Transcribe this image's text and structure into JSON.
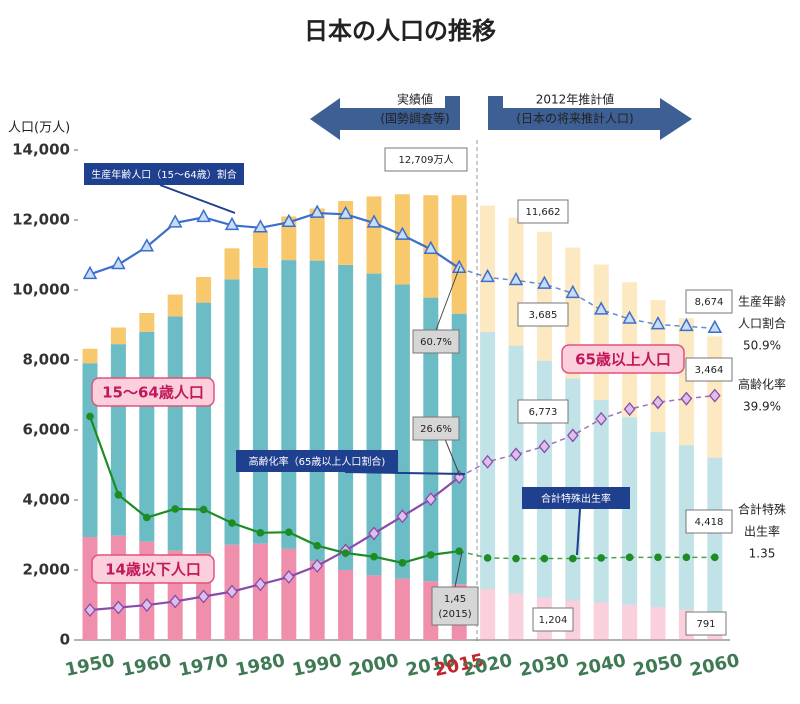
{
  "chart_data": {
    "type": "bar",
    "stacked": true,
    "title": "日本の人口の推移",
    "y_label": "人口(万人)",
    "categories": [
      "1950",
      null,
      "1960",
      null,
      "1970",
      null,
      "1980",
      null,
      "1990",
      null,
      "2000",
      null,
      "2010",
      "2015",
      "2020",
      null,
      "2030",
      null,
      "2040",
      null,
      "2050",
      null,
      "2060"
    ],
    "highlight_index": 13,
    "projection_start_index": 14,
    "ylim": [
      0,
      14000
    ],
    "yticks": [
      0,
      {
        "value": 2000,
        "label": "2,000"
      },
      {
        "value": 4000,
        "label": "4,000"
      },
      {
        "value": 6000,
        "label": "6,000"
      },
      {
        "value": 8000,
        "label": "8,000"
      },
      {
        "value": 10000,
        "label": "10,000"
      },
      {
        "value": 12000,
        "label": "12,000"
      },
      {
        "value": 14000,
        "label": "14,000"
      }
    ],
    "y2lim": [
      0,
      80
    ],
    "y3lim": [
      0,
      8
    ],
    "series": [
      {
        "name": "14歳以下人口",
        "color": "#f08fab",
        "values": [
          2943,
          2980,
          2807,
          2553,
          2482,
          2722,
          2751,
          2603,
          2249,
          2001,
          1847,
          1752,
          1680,
          1595,
          1457,
          1324,
          1204,
          1129,
          1073,
          1012,
          939,
          861,
          791
        ]
      },
      {
        "name": "15～64歳人口",
        "color": "#6cbcc6",
        "values": [
          4966,
          5473,
          6000,
          6693,
          7157,
          7581,
          7883,
          8251,
          8590,
          8716,
          8622,
          8409,
          8103,
          7728,
          7341,
          7085,
          6773,
          6343,
          5787,
          5353,
          5001,
          4706,
          4418
        ]
      },
      {
        "name": "65歳以上人口",
        "color": "#f8c96c",
        "values": [
          411,
          475,
          535,
          624,
          733,
          887,
          1065,
          1247,
          1489,
          1826,
          2204,
          2576,
          2925,
          3387,
          3612,
          3657,
          3685,
          3741,
          3868,
          3856,
          3768,
          3626,
          3464
        ]
      }
    ],
    "lines": [
      {
        "name": "生産年齢人口（15～64歳）割合",
        "axis": "y2",
        "marker": "triangle",
        "color": "#3b6fcc",
        "values": [
          59.7,
          61.3,
          64.2,
          68.1,
          69.0,
          67.7,
          67.3,
          68.2,
          69.7,
          69.5,
          68.1,
          66.1,
          63.8,
          60.7,
          59.2,
          58.7,
          58.1,
          56.6,
          53.9,
          52.4,
          51.5,
          51.2,
          50.9
        ]
      },
      {
        "name": "高齢化率（65歳以上人口割合)",
        "axis": "y2",
        "marker": "diamond",
        "color": "#8b4bab",
        "values": [
          4.9,
          5.3,
          5.7,
          6.3,
          7.1,
          7.9,
          9.1,
          10.3,
          12.1,
          14.6,
          17.4,
          20.2,
          23.0,
          26.6,
          29.1,
          30.3,
          31.6,
          33.4,
          36.1,
          37.7,
          38.8,
          39.4,
          39.9
        ]
      },
      {
        "name": "合計特殊出生率",
        "axis": "y3",
        "marker": "circle",
        "color": "#1e8c24",
        "values": [
          3.65,
          2.37,
          2.0,
          2.14,
          2.13,
          1.91,
          1.75,
          1.76,
          1.54,
          1.42,
          1.36,
          1.26,
          1.39,
          1.45,
          1.34,
          1.33,
          1.33,
          1.33,
          1.34,
          1.35,
          1.35,
          1.35,
          1.35
        ]
      }
    ],
    "periods": {
      "actual": [
        "実績値",
        "(国勢調査等)"
      ],
      "projection": [
        "2012年推計値",
        "(日本の将来推計人口)"
      ]
    },
    "annotations": [
      {
        "lines": [
          "12,709万人"
        ],
        "style": "white"
      },
      {
        "lines": [
          "60.7%"
        ],
        "style": "gray"
      },
      {
        "lines": [
          "26.6%"
        ],
        "style": "gray"
      },
      {
        "lines": [
          "1,45",
          "(2015)"
        ],
        "style": "gray"
      },
      {
        "lines": [
          "11,662"
        ],
        "style": "white"
      },
      {
        "lines": [
          "3,685"
        ],
        "style": "white"
      },
      {
        "lines": [
          "6,773"
        ],
        "style": "white"
      },
      {
        "lines": [
          "1,204"
        ],
        "style": "white"
      },
      {
        "lines": [
          "8,674"
        ],
        "style": "white"
      },
      {
        "lines": [
          "3,464"
        ],
        "style": "white"
      },
      {
        "lines": [
          "4,418"
        ],
        "style": "white"
      },
      {
        "lines": [
          "791"
        ],
        "style": "white"
      }
    ],
    "end_labels": [
      [
        "生産年齢",
        "人口割合",
        "50.9%"
      ],
      [
        "高齢化率",
        "39.9%"
      ],
      [
        "合計特殊",
        "出生率",
        "1.35"
      ]
    ]
  }
}
